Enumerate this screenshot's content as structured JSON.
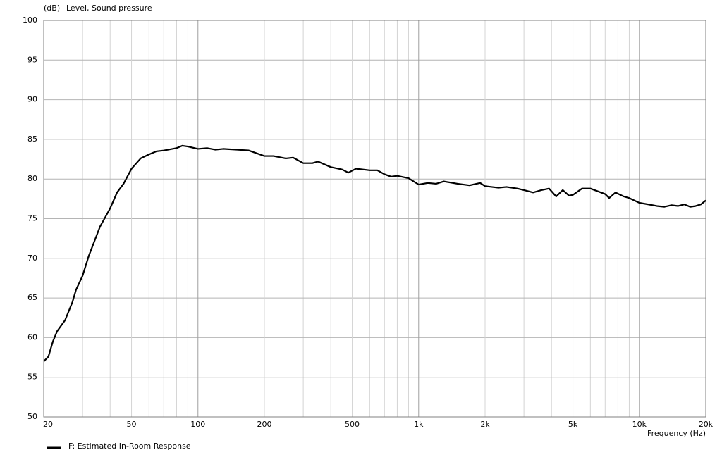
{
  "chart_data": {
    "type": "line",
    "y_unit": "(dB)",
    "y_label": "Level, Sound pressure",
    "x_label": "Frequency (Hz)",
    "log_x": true,
    "grid": true,
    "xlim": [
      20,
      20000
    ],
    "ylim": [
      50,
      100
    ],
    "xticks": [
      20,
      50,
      100,
      200,
      500,
      {
        "value": 1000,
        "label": "1k"
      },
      {
        "value": 2000,
        "label": "2k"
      },
      {
        "value": 5000,
        "label": "5k"
      },
      {
        "value": 10000,
        "label": "10k"
      },
      {
        "value": 20000,
        "label": "20k"
      }
    ],
    "xminor": [
      30,
      40,
      60,
      70,
      80,
      90,
      300,
      400,
      600,
      700,
      800,
      900,
      3000,
      4000,
      6000,
      7000,
      8000,
      9000
    ],
    "yticks": [
      50,
      55,
      60,
      65,
      70,
      75,
      80,
      85,
      90,
      95,
      100
    ],
    "x": [
      20,
      21,
      22,
      23,
      25,
      27,
      28,
      30,
      32,
      34,
      36,
      40,
      43,
      46,
      50,
      55,
      60,
      65,
      70,
      80,
      85,
      90,
      100,
      110,
      120,
      130,
      150,
      170,
      200,
      220,
      250,
      270,
      300,
      330,
      350,
      400,
      450,
      480,
      520,
      600,
      650,
      700,
      750,
      800,
      900,
      1000,
      1100,
      1200,
      1300,
      1500,
      1700,
      1900,
      2000,
      2300,
      2500,
      2800,
      3000,
      3300,
      3600,
      3900,
      4200,
      4500,
      4800,
      5000,
      5500,
      6000,
      7000,
      7300,
      7800,
      8500,
      9000,
      10000,
      11000,
      12000,
      13000,
      14000,
      15000,
      16000,
      17000,
      18000,
      19000,
      20000
    ],
    "series": [
      {
        "name": "F: Estimated In-Room Response",
        "color": "#000000",
        "values": [
          57.0,
          57.6,
          59.5,
          60.8,
          62.2,
          64.5,
          66.0,
          67.8,
          70.3,
          72.2,
          74.0,
          76.3,
          78.3,
          79.4,
          81.3,
          82.6,
          83.1,
          83.5,
          83.6,
          83.9,
          84.2,
          84.1,
          83.8,
          83.9,
          83.7,
          83.8,
          83.7,
          83.6,
          82.9,
          82.9,
          82.6,
          82.7,
          82.0,
          82.0,
          82.2,
          81.5,
          81.2,
          80.8,
          81.3,
          81.1,
          81.1,
          80.6,
          80.3,
          80.4,
          80.1,
          79.3,
          79.5,
          79.4,
          79.7,
          79.4,
          79.2,
          79.5,
          79.1,
          78.9,
          79.0,
          78.8,
          78.6,
          78.3,
          78.6,
          78.8,
          77.8,
          78.6,
          77.9,
          78.0,
          78.8,
          78.8,
          78.1,
          77.6,
          78.3,
          77.8,
          77.6,
          77.0,
          76.8,
          76.6,
          76.5,
          76.7,
          76.6,
          76.8,
          76.5,
          76.6,
          76.8,
          77.3
        ]
      }
    ]
  }
}
